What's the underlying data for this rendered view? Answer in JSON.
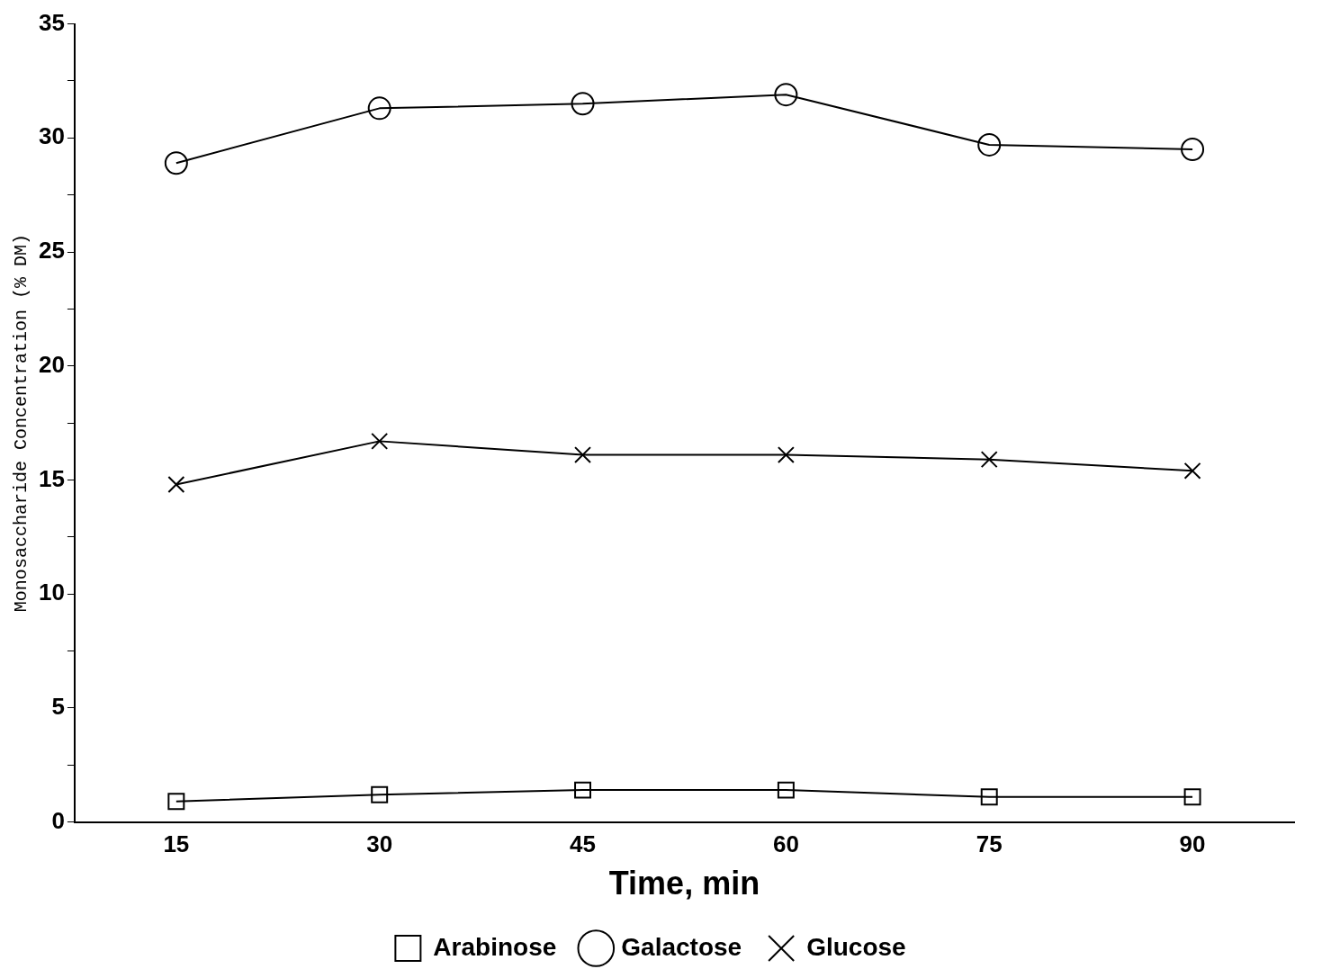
{
  "chart_data": {
    "type": "line",
    "xlabel": "Time, min",
    "ylabel": "Monosaccharide Concentration (% DM)",
    "x": [
      15,
      30,
      45,
      60,
      75,
      90
    ],
    "xlim": [
      7.5,
      97.5
    ],
    "xticks": [
      15,
      30,
      45,
      60,
      75,
      90
    ],
    "ylim": [
      0,
      35
    ],
    "yticks": [
      0,
      {
        "value": 2.5,
        "label": null
      },
      5,
      {
        "value": 7.5,
        "label": null
      },
      10,
      {
        "value": 12.5,
        "label": null
      },
      15,
      {
        "value": 17.5,
        "label": null
      },
      20,
      {
        "value": 22.5,
        "label": null
      },
      25,
      {
        "value": 27.5,
        "label": null
      },
      30,
      {
        "value": 32.5,
        "label": null
      },
      35
    ],
    "series": [
      {
        "name": "Arabinose",
        "color": "#000000",
        "marker": "square",
        "values": [
          0.9,
          1.2,
          1.4,
          1.4,
          1.1,
          1.1
        ]
      },
      {
        "name": "Galactose",
        "color": "#000000",
        "marker": "circle",
        "values": [
          28.9,
          31.3,
          31.5,
          31.9,
          29.7,
          29.5
        ]
      },
      {
        "name": "Glucose",
        "color": "#000000",
        "marker": "cross",
        "values": [
          14.8,
          16.7,
          16.1,
          16.1,
          15.9,
          15.4
        ]
      }
    ],
    "grid": false,
    "legend": "bottom",
    "line_style": "solid"
  }
}
